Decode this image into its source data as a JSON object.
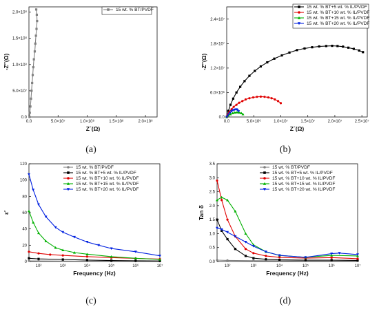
{
  "captions": [
    "(a)",
    "(b)",
    "(c)",
    "(d)"
  ],
  "chart_data": [
    {
      "type": "line",
      "panel": "a",
      "xlabel": "Z´(Ω)",
      "ylabel": "-Z″(Ω)",
      "xlim": [
        0,
        220000000
      ],
      "ylim": [
        0,
        210000000
      ],
      "x_ticks": [
        0,
        50000000,
        100000000,
        150000000,
        200000000
      ],
      "x_tick_labels": [
        "0.0",
        "5.0×10⁷",
        "1.0×10⁸",
        "1.5×10⁸",
        "2.0×10⁸"
      ],
      "y_ticks": [
        0,
        50000000,
        100000000,
        150000000,
        200000000
      ],
      "y_tick_labels": [
        "0.0",
        "5.0×10⁷",
        "1.0×10⁸",
        "1.5×10⁸",
        "2.0×10⁸"
      ],
      "legend_position": "top-right",
      "series": [
        {
          "name": "15 wt. % BT/PVDF",
          "color": "#808080",
          "marker": "square",
          "x": [
            1000000,
            1500000,
            2500000,
            3500000,
            4500000,
            5500000,
            6500000,
            7500000,
            8500000,
            10000000,
            11000000,
            12000000,
            13000000,
            14000000,
            13500000,
            12500000
          ],
          "y": [
            0,
            8000000,
            20000000,
            35000000,
            50000000,
            65000000,
            80000000,
            95000000,
            110000000,
            125000000,
            140000000,
            155000000,
            168000000,
            183000000,
            195000000,
            205000000
          ]
        }
      ]
    },
    {
      "type": "line",
      "panel": "b",
      "xlabel": "Z´(Ω)",
      "ylabel": "-Z″(Ω)",
      "xlim": [
        0,
        26000000
      ],
      "ylim": [
        0,
        27000000
      ],
      "x_ticks": [
        0,
        5000000,
        10000000,
        15000000,
        20000000,
        25000000
      ],
      "x_tick_labels": [
        "0.0",
        "5.0×10⁶",
        "1.0×10⁷",
        "1.5×10⁷",
        "2.0×10⁷",
        "2.5×10⁷"
      ],
      "y_ticks": [
        0,
        6000000,
        12000000,
        18000000,
        24000000
      ],
      "y_tick_labels": [
        "0.0",
        "6.0×10⁶",
        "1.2×10⁷",
        "1.8×10⁷",
        "2.4×10⁷"
      ],
      "legend_position": "top-right",
      "series": [
        {
          "name": "15 wt. % BT+5 wt. % IL/PVDF",
          "color": "#000000",
          "marker": "square",
          "x": [
            0,
            300000,
            700000,
            1200000,
            1800000,
            2500000,
            3300000,
            4200000,
            5200000,
            6300000,
            7500000,
            8800000,
            10200000,
            11600000,
            13000000,
            14400000,
            15800000,
            17100000,
            18400000,
            19500000,
            20500000,
            21500000,
            22500000,
            23500000,
            24500000,
            25200000
          ],
          "y": [
            0,
            1500000,
            3000000,
            4500000,
            6000000,
            7400000,
            8800000,
            10100000,
            11300000,
            12400000,
            13400000,
            14300000,
            15100000,
            15800000,
            16400000,
            16800000,
            17100000,
            17300000,
            17400000,
            17450000,
            17400000,
            17250000,
            17000000,
            16700000,
            16300000,
            15900000
          ]
        },
        {
          "name": "15 wt. % BT+10 wt. % IL/PVDF",
          "color": "#e00000",
          "marker": "circle",
          "x": [
            0,
            200000,
            500000,
            900000,
            1300000,
            1800000,
            2300000,
            2900000,
            3500000,
            4200000,
            4900000,
            5600000,
            6300000,
            7000000,
            7700000,
            8300000,
            8900000,
            9500000,
            10000000
          ],
          "y": [
            0,
            700000,
            1300000,
            1900000,
            2500000,
            3000000,
            3500000,
            3900000,
            4300000,
            4600000,
            4800000,
            4950000,
            5000000,
            4950000,
            4800000,
            4600000,
            4300000,
            3900000,
            3400000
          ]
        },
        {
          "name": "15 wt. % BT+15 wt. % IL/PVDF",
          "color": "#00b000",
          "marker": "triangle",
          "x": [
            0,
            300000,
            700000,
            1100000,
            1500000,
            1900000,
            2300000,
            2700000,
            3000000
          ],
          "y": [
            0,
            400000,
            700000,
            950000,
            1100000,
            1150000,
            1100000,
            950000,
            700000
          ]
        },
        {
          "name": "15 wt. % BT+20 wt. % IL/PVDF",
          "color": "#0020e0",
          "marker": "triangle-down",
          "x": [
            0,
            300000,
            600000,
            900000,
            1200000,
            1500000,
            1800000,
            2000000,
            2200000
          ],
          "y": [
            0,
            600000,
            1000000,
            1400000,
            1650000,
            1800000,
            1850000,
            1700000,
            1400000
          ]
        }
      ]
    },
    {
      "type": "line",
      "panel": "c",
      "xlabel": "Frequency (Hz)",
      "ylabel": "ε′",
      "x_scale": "log",
      "xlim": [
        40,
        10000000
      ],
      "ylim": [
        0,
        120
      ],
      "x_ticks": [
        100,
        1000,
        10000,
        100000,
        1000000,
        10000000
      ],
      "x_tick_labels": [
        "10²",
        "10³",
        "10⁴",
        "10⁵",
        "10⁶",
        "10⁷"
      ],
      "y_ticks": [
        0,
        20,
        40,
        60,
        80,
        100,
        120
      ],
      "y_tick_labels": [
        "0",
        "20",
        "40",
        "60",
        "80",
        "100",
        "120"
      ],
      "legend_position": "top-right",
      "series": [
        {
          "name": "15 wt. % BT/PVDF",
          "color": "#808080",
          "marker": "circle",
          "x": [
            40,
            100,
            1000,
            10000,
            100000,
            1000000,
            10000000
          ],
          "y": [
            0.8,
            0.7,
            0.6,
            0.5,
            0.45,
            0.4,
            0.35
          ]
        },
        {
          "name": "15 wt. % BT+5 wt. % IL/PVDF",
          "color": "#000000",
          "marker": "square",
          "x": [
            40,
            100,
            1000,
            10000,
            100000,
            1000000,
            10000000
          ],
          "y": [
            4,
            3.2,
            2.5,
            1.8,
            1.2,
            0.9,
            0.7
          ]
        },
        {
          "name": "15 wt. % BT+10 wt. % IL/PVDF",
          "color": "#e00000",
          "marker": "circle",
          "x": [
            40,
            100,
            300,
            1000,
            10000,
            100000,
            1000000,
            10000000
          ],
          "y": [
            12,
            10,
            8.5,
            7.5,
            6,
            4.8,
            3.8,
            3
          ]
        },
        {
          "name": "15 wt. % BT+15 wt. % IL/PVDF",
          "color": "#00b000",
          "marker": "triangle",
          "x": [
            40,
            60,
            100,
            200,
            500,
            1000,
            3000,
            10000,
            100000,
            1000000,
            10000000
          ],
          "y": [
            62,
            48,
            35,
            25,
            17,
            14,
            11,
            9,
            6,
            4,
            2.5
          ]
        },
        {
          "name": "15 wt. % BT+20 wt. % IL/PVDF",
          "color": "#0020e0",
          "marker": "triangle-down",
          "x": [
            40,
            60,
            100,
            200,
            500,
            1000,
            3000,
            10000,
            30000,
            100000,
            1000000,
            10000000
          ],
          "y": [
            107,
            88,
            70,
            55,
            42,
            36,
            30,
            24,
            20,
            16,
            12,
            7
          ]
        }
      ]
    },
    {
      "type": "line",
      "panel": "d",
      "xlabel": "Frequency (Hz)",
      "ylabel": "Tan δ",
      "x_scale": "log",
      "xlim": [
        40,
        10000000
      ],
      "ylim": [
        0,
        3.5
      ],
      "x_ticks": [
        100,
        1000,
        10000,
        100000,
        1000000,
        10000000
      ],
      "x_tick_labels": [
        "10²",
        "10³",
        "10⁴",
        "10⁵",
        "10⁶",
        "10⁷"
      ],
      "y_ticks": [
        0,
        0.5,
        1.0,
        1.5,
        2.0,
        2.5,
        3.0,
        3.5
      ],
      "y_tick_labels": [
        "0.0",
        "0.5",
        "1.0",
        "1.5",
        "2.0",
        "2.5",
        "3.0",
        "3.5"
      ],
      "legend_position": "top-right",
      "series": [
        {
          "name": "15 wt. % BT/PVDF",
          "color": "#808080",
          "marker": "circle",
          "x": [
            40,
            100,
            1000,
            10000,
            100000,
            1000000,
            10000000
          ],
          "y": [
            0.05,
            0.04,
            0.03,
            0.03,
            0.02,
            0.02,
            0.02
          ]
        },
        {
          "name": "15 wt. % BT+5 wt. % IL/PVDF",
          "color": "#000000",
          "marker": "square",
          "x": [
            40,
            60,
            100,
            200,
            500,
            1000,
            3000,
            10000,
            100000,
            1000000,
            10000000
          ],
          "y": [
            1.5,
            1.1,
            0.8,
            0.45,
            0.2,
            0.12,
            0.08,
            0.06,
            0.05,
            0.05,
            0.04
          ]
        },
        {
          "name": "15 wt. % BT+10 wt. % IL/PVDF",
          "color": "#e00000",
          "marker": "circle",
          "x": [
            40,
            60,
            100,
            200,
            500,
            1000,
            3000,
            10000,
            100000,
            1000000,
            10000000
          ],
          "y": [
            2.9,
            2.2,
            1.5,
            0.9,
            0.45,
            0.3,
            0.2,
            0.15,
            0.12,
            0.14,
            0.1
          ]
        },
        {
          "name": "15 wt. % BT+15 wt. % IL/PVDF",
          "color": "#00b000",
          "marker": "triangle",
          "x": [
            40,
            60,
            100,
            200,
            500,
            1000,
            3000,
            10000,
            100000,
            1000000,
            10000000
          ],
          "y": [
            2.2,
            2.3,
            2.2,
            1.8,
            1.0,
            0.6,
            0.35,
            0.22,
            0.15,
            0.22,
            0.2
          ]
        },
        {
          "name": "15 wt. % BT+20 wt. % IL/PVDF",
          "color": "#0020e0",
          "marker": "triangle-down",
          "x": [
            40,
            60,
            100,
            200,
            500,
            1000,
            3000,
            10000,
            100000,
            1000000,
            2000000,
            10000000
          ],
          "y": [
            1.2,
            1.15,
            1.05,
            0.9,
            0.7,
            0.55,
            0.35,
            0.22,
            0.15,
            0.28,
            0.3,
            0.25
          ]
        }
      ]
    }
  ]
}
